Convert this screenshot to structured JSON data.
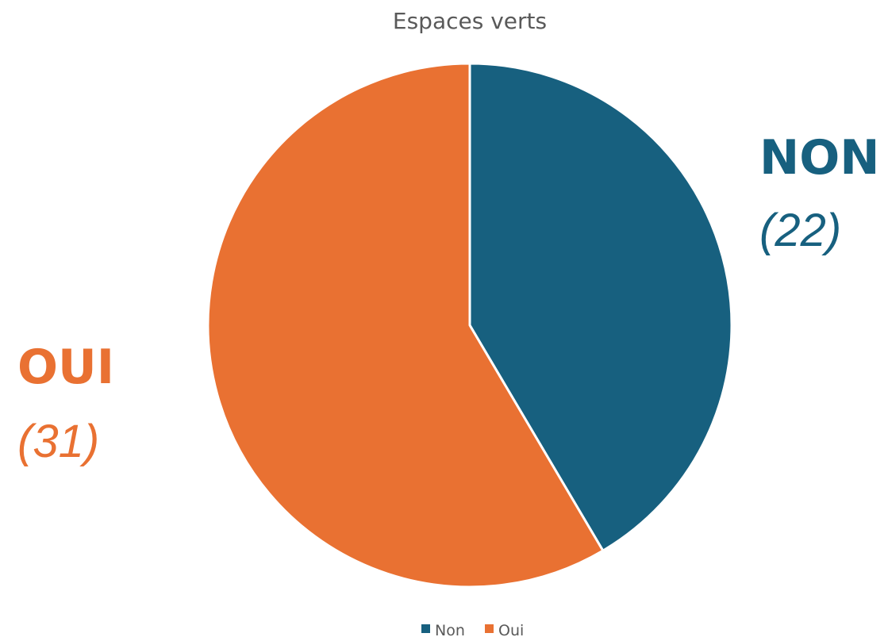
{
  "chart_data": {
    "type": "pie",
    "title": "Espaces verts",
    "slices": [
      {
        "name": "Non",
        "value": 22,
        "label": "NON",
        "value_label": "(22)",
        "color": "#17607f"
      },
      {
        "name": "Oui",
        "value": 31,
        "label": "OUI",
        "value_label": "(31)",
        "color": "#e97132"
      }
    ],
    "legend": {
      "position": "bottom",
      "entries": [
        "Non",
        "Oui"
      ]
    },
    "start_angle": "12 o'clock",
    "direction": "clockwise"
  }
}
